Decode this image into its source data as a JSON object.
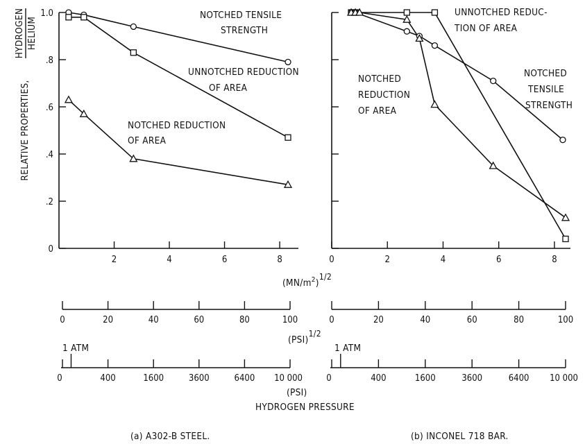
{
  "figure": {
    "ylabel": "RELATIVE PROPERTIES,",
    "ylabel_frac_num": "HYDROGEN",
    "ylabel_frac_den": "HELIUM",
    "xlabel_main": "(MN/m",
    "xlabel_main_sup2": "2",
    "xlabel_main_exp": "1/2",
    "xlabel_psi_sqrt": "(PSI)",
    "xlabel_psi_sqrt_exp": "1/2",
    "xlabel_psi": "(PSI)",
    "xlabel_pressure": "HYDROGEN PRESSURE",
    "atm_label": "1 ATM",
    "caption_a": "(a) A302-B STEEL.",
    "caption_b": "(b) INCONEL 718 BAR.",
    "ytick_labels": [
      "0",
      ".2",
      ".4",
      ".6",
      ".8",
      "1.0"
    ],
    "xtick_labels_a": [
      "2",
      "4",
      "6",
      "8"
    ],
    "xtick_labels_b": [
      "0",
      "2",
      "4",
      "6",
      "8"
    ],
    "psi_sqrt_labels": [
      "0",
      "20",
      "40",
      "60",
      "80",
      "100"
    ],
    "psi_labels": [
      "0",
      "400",
      "1600",
      "3600",
      "6400",
      "10 000"
    ]
  },
  "chart_data": [
    {
      "type": "line",
      "caption": "(a) A302-B STEEL.",
      "xlabel": "(MN/m2)1/2",
      "ylabel": "RELATIVE PROPERTIES, HYDROGEN/HELIUM",
      "xlim": [
        0,
        8.7
      ],
      "ylim": [
        0,
        1.0
      ],
      "series": [
        {
          "name": "NOTCHED TENSILE STRENGTH",
          "label_lines": [
            "NOTCHED TENSILE",
            "STRENGTH"
          ],
          "marker": "circle",
          "points": [
            [
              0.35,
              1.0
            ],
            [
              0.9,
              0.99
            ],
            [
              2.7,
              0.94
            ],
            [
              8.3,
              0.79
            ]
          ]
        },
        {
          "name": "UNNOTCHED REDUCTION OF AREA",
          "label_lines": [
            "UNNOTCHED REDUCTION",
            "OF AREA"
          ],
          "marker": "square",
          "points": [
            [
              0.35,
              0.98
            ],
            [
              0.9,
              0.98
            ],
            [
              2.7,
              0.83
            ],
            [
              8.3,
              0.47
            ]
          ]
        },
        {
          "name": "NOTCHED REDUCTION OF AREA",
          "label_lines": [
            "NOTCHED REDUCTION",
            "OF AREA"
          ],
          "marker": "triangle",
          "points": [
            [
              0.35,
              0.63
            ],
            [
              0.9,
              0.57
            ],
            [
              2.7,
              0.38
            ],
            [
              8.3,
              0.27
            ]
          ]
        }
      ]
    },
    {
      "type": "line",
      "caption": "(b) INCONEL 718 BAR.",
      "xlabel": "(MN/m2)1/2",
      "ylabel": "RELATIVE PROPERTIES, HYDROGEN/HELIUM",
      "xlim": [
        0,
        8.6
      ],
      "ylim": [
        0,
        1.0
      ],
      "series": [
        {
          "name": "UNNOTCHED REDUCTION OF AREA",
          "label_lines": [
            "UNNOTCHED REDUC-",
            "TION OF AREA"
          ],
          "marker": "square",
          "points": [
            [
              0.7,
              1.0
            ],
            [
              0.85,
              1.0
            ],
            [
              2.7,
              1.0
            ],
            [
              3.7,
              1.0
            ],
            [
              8.4,
              0.04
            ]
          ]
        },
        {
          "name": "NOTCHED TENSILE STRENGTH",
          "label_lines": [
            "NOTCHED",
            "TENSILE",
            "STRENGTH"
          ],
          "marker": "circle",
          "points": [
            [
              0.7,
              1.0
            ],
            [
              0.85,
              1.0
            ],
            [
              2.7,
              0.92
            ],
            [
              3.15,
              0.9
            ],
            [
              3.7,
              0.86
            ],
            [
              5.8,
              0.71
            ],
            [
              8.3,
              0.46
            ]
          ]
        },
        {
          "name": "NOTCHED REDUCTION OF AREA",
          "label_lines": [
            "NOTCHED",
            "REDUCTION",
            "OF AREA"
          ],
          "marker": "triangle",
          "points": [
            [
              0.7,
              1.0
            ],
            [
              0.85,
              1.0
            ],
            [
              1.0,
              1.0
            ],
            [
              2.7,
              0.97
            ],
            [
              3.15,
              0.89
            ],
            [
              3.7,
              0.61
            ],
            [
              5.8,
              0.35
            ],
            [
              8.4,
              0.13
            ]
          ]
        }
      ]
    }
  ]
}
